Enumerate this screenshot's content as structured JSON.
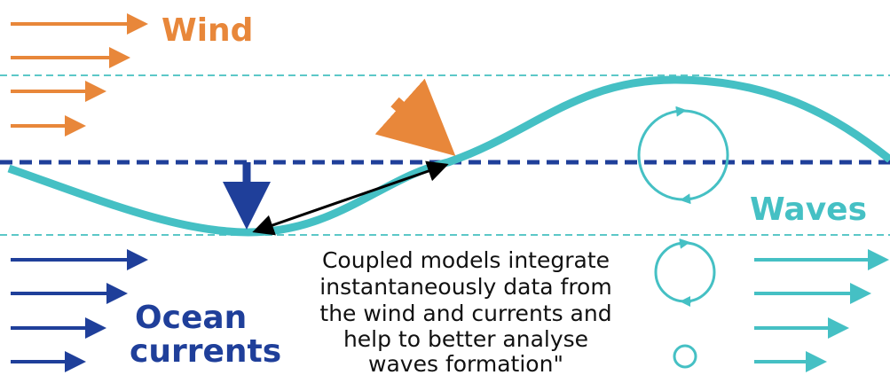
{
  "labels": {
    "wind": "Wind",
    "waves": "Waves",
    "ocean_currents": [
      "Ocean",
      "currents"
    ]
  },
  "caption": [
    "Coupled models integrate",
    "instantaneously data from",
    "the wind and currents and",
    "help to better analyse",
    "waves formation\""
  ]
}
